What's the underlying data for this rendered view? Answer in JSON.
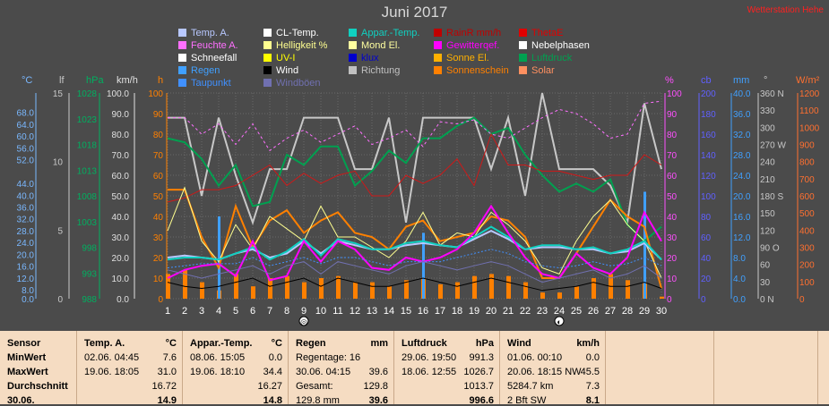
{
  "title": "Juni 2017",
  "watermark": "Wetterstation Hehe",
  "legend": [
    {
      "label": "Temp. A.",
      "color": "#b8c8ff"
    },
    {
      "label": "CL-Temp.",
      "color": "#ffffff"
    },
    {
      "label": "Appar.-Temp.",
      "color": "#10d0c0"
    },
    {
      "label": "RainR mm/h",
      "color": "#c00000"
    },
    {
      "label": "ThetaE",
      "color": "#e00000"
    },
    {
      "label": "Feuchte A.",
      "color": "#ff70ff"
    },
    {
      "label": "Helligkeit %",
      "color": "#ffff90"
    },
    {
      "label": "Mond El.",
      "color": "#ffffa0"
    },
    {
      "label": "Gewitterqef.",
      "color": "#ff00ff"
    },
    {
      "label": "Nebelphasen",
      "color": "#ffffff"
    },
    {
      "label": "Schneefall",
      "color": "#ffffff"
    },
    {
      "label": "UV-I",
      "color": "#ffff00"
    },
    {
      "label": "klux",
      "color": "#0000cc"
    },
    {
      "label": "Sonne El.",
      "color": "#ffb000"
    },
    {
      "label": "Luftdruck",
      "color": "#00a050"
    },
    {
      "label": "Regen",
      "color": "#40a0ff"
    },
    {
      "label": "Wind",
      "color": "#000000"
    },
    {
      "label": "Richtung",
      "color": "#c0c0c0"
    },
    {
      "label": "Sonnenschein",
      "color": "#ff8000"
    },
    {
      "label": "Solar",
      "color": "#ff9060"
    },
    {
      "label": "Taupunkt",
      "color": "#4090ff"
    },
    {
      "label": "Windböen",
      "color": "#7070b0"
    }
  ],
  "axis_headers": {
    "temp": "°C",
    "lf": "lf",
    "hpa": "hPa",
    "kmh": "km/h",
    "h": "h",
    "pct": "%",
    "cb": "cb",
    "mm": "mm",
    "deg": "°",
    "wm2": "W/m²"
  },
  "chart_data": {
    "type": "line",
    "title": "Juni 2017",
    "x": [
      1,
      2,
      3,
      4,
      5,
      6,
      7,
      8,
      9,
      10,
      11,
      12,
      13,
      14,
      15,
      16,
      17,
      18,
      19,
      20,
      21,
      22,
      23,
      24,
      25,
      26,
      27,
      28,
      29,
      30
    ],
    "axes": {
      "temp_c": {
        "ticks": [
          "68.0",
          "64.0",
          "60.0",
          "56.0",
          "52.0",
          "44.0",
          "40.0",
          "36.0",
          "32.0",
          "28.0",
          "24.0",
          "20.0",
          "16.0",
          "12.0",
          "8.0",
          "0.0"
        ]
      },
      "lf": {
        "ticks": [
          "15",
          "10",
          "5",
          "0"
        ]
      },
      "hpa": {
        "ticks": [
          "1028",
          "1023",
          "1018",
          "1013",
          "1008",
          "1003",
          "998",
          "993",
          "988"
        ]
      },
      "kmh": {
        "ticks": [
          "100.0",
          "90.0",
          "80.0",
          "70.0",
          "60.0",
          "50.0",
          "40.0",
          "30.0",
          "20.0",
          "10.0",
          "0.0"
        ]
      },
      "h": {
        "ticks": [
          "100",
          "90",
          "80",
          "70",
          "60",
          "50",
          "40",
          "30",
          "20",
          "10",
          "0"
        ]
      },
      "pct": {
        "ticks": [
          "100",
          "90",
          "80",
          "70",
          "60",
          "50",
          "40",
          "30",
          "20",
          "10",
          "0"
        ]
      },
      "cb": {
        "ticks": [
          "200",
          "180",
          "160",
          "140",
          "120",
          "100",
          "80",
          "60",
          "40",
          "20",
          "0"
        ]
      },
      "mm": {
        "ticks": [
          "40.0",
          "36.0",
          "32.0",
          "28.0",
          "24.0",
          "20.0",
          "16.0",
          "12.0",
          "8.0",
          "4.0",
          "0.0"
        ]
      },
      "deg": {
        "ticks": [
          "360 N",
          "330",
          "300",
          "270 W",
          "240",
          "210",
          "180 S",
          "150",
          "120",
          "90 O",
          "60",
          "30",
          "0 N"
        ]
      },
      "wm2": {
        "ticks": [
          "1200",
          "1100",
          "1000",
          "900",
          "800",
          "700",
          "600",
          "500",
          "400",
          "300",
          "200",
          "100",
          "0"
        ]
      }
    },
    "series": [
      {
        "name": "Richtung",
        "color": "#c8c8c8",
        "width": 2,
        "values": [
          88,
          88,
          50,
          88,
          60,
          37,
          63,
          63,
          88,
          88,
          88,
          63,
          63,
          88,
          37,
          88,
          88,
          88,
          88,
          63,
          88,
          50,
          100,
          63,
          63,
          63,
          55,
          37,
          95,
          63
        ]
      },
      {
        "name": "Luftdruck",
        "color": "#00a050",
        "width": 2,
        "values": [
          78,
          76,
          68,
          55,
          65,
          45,
          47,
          70,
          65,
          74,
          74,
          55,
          62,
          72,
          66,
          78,
          78,
          84,
          88,
          80,
          83,
          70,
          60,
          52,
          56,
          52,
          58,
          36,
          28,
          35
        ]
      },
      {
        "name": "ThetaE",
        "color": "#d01818",
        "width": 1,
        "values": [
          47,
          49,
          53,
          53,
          55,
          60,
          65,
          55,
          61,
          56,
          60,
          62,
          50,
          50,
          60,
          56,
          60,
          68,
          55,
          80,
          65,
          65,
          62,
          62,
          60,
          58,
          60,
          60,
          70,
          65
        ]
      },
      {
        "name": "Feuchte A.",
        "color": "#ff70ff",
        "width": 1,
        "dash": "3,3",
        "values": [
          88,
          88,
          80,
          85,
          75,
          85,
          72,
          78,
          82,
          76,
          80,
          84,
          75,
          78,
          82,
          74,
          86,
          85,
          87,
          80,
          78,
          83,
          88,
          92,
          90,
          85,
          78,
          80,
          95,
          96
        ]
      },
      {
        "name": "Sonnenschein",
        "color": "#ff8000",
        "width": 2,
        "values": [
          53,
          53,
          30,
          15,
          45,
          25,
          38,
          43,
          32,
          38,
          42,
          32,
          30,
          24,
          35,
          38,
          28,
          30,
          32,
          40,
          38,
          30,
          10,
          10,
          22,
          35,
          48,
          40,
          35,
          5
        ]
      },
      {
        "name": "Helligkeit %",
        "color": "#ffff90",
        "width": 1,
        "values": [
          33,
          54,
          28,
          18,
          36,
          24,
          40,
          34,
          28,
          45,
          30,
          30,
          25,
          20,
          28,
          42,
          26,
          32,
          30,
          42,
          36,
          28,
          15,
          12,
          28,
          40,
          48,
          36,
          28,
          10
        ]
      },
      {
        "name": "Temp. A.",
        "color": "#b8c8ff",
        "width": 2,
        "values": [
          20,
          21,
          20,
          19,
          22,
          24,
          20,
          22,
          28,
          22,
          28,
          26,
          24,
          24,
          26,
          27,
          26,
          25,
          29,
          33,
          29,
          24,
          25,
          25,
          24,
          24,
          22,
          23,
          27,
          19
        ]
      },
      {
        "name": "Appar.-Temp.",
        "color": "#10d0c0",
        "width": 2,
        "values": [
          19,
          20,
          20,
          19,
          22,
          25,
          19,
          23,
          29,
          21,
          29,
          27,
          24,
          24,
          27,
          28,
          26,
          25,
          30,
          35,
          30,
          24,
          26,
          26,
          24,
          25,
          22,
          24,
          28,
          19
        ]
      },
      {
        "name": "Gewitterqef.",
        "color": "#ff00ff",
        "width": 2,
        "values": [
          10,
          14,
          16,
          17,
          11,
          28,
          9,
          11,
          28,
          18,
          28,
          24,
          15,
          14,
          20,
          18,
          20,
          24,
          32,
          45,
          32,
          20,
          12,
          10,
          22,
          15,
          12,
          20,
          42,
          28
        ]
      },
      {
        "name": "Taupunkt",
        "color": "#4090ff",
        "width": 1,
        "dash": "2,2",
        "values": [
          15,
          16,
          17,
          17,
          17,
          20,
          16,
          18,
          20,
          17,
          20,
          20,
          18,
          16,
          18,
          18,
          18,
          20,
          22,
          24,
          22,
          18,
          16,
          15,
          16,
          18,
          16,
          17,
          20,
          16
        ]
      },
      {
        "name": "Windböen",
        "color": "#7070b0",
        "width": 1,
        "values": [
          14,
          12,
          10,
          12,
          14,
          16,
          12,
          16,
          18,
          12,
          18,
          16,
          14,
          12,
          16,
          18,
          16,
          14,
          16,
          18,
          16,
          12,
          8,
          10,
          12,
          14,
          10,
          12,
          16,
          10
        ]
      },
      {
        "name": "Wind",
        "color": "#000000",
        "width": 1,
        "values": [
          8,
          6,
          5,
          6,
          8,
          10,
          6,
          8,
          10,
          6,
          10,
          8,
          6,
          6,
          8,
          10,
          8,
          6,
          8,
          10,
          8,
          6,
          4,
          5,
          6,
          8,
          6,
          6,
          8,
          5
        ]
      }
    ],
    "bars": {
      "Regen": {
        "color": "#40a0ff",
        "values": [
          0,
          0,
          0,
          40,
          0,
          0,
          0,
          0,
          0,
          0,
          0,
          0,
          0,
          0,
          0,
          32,
          0,
          0,
          0,
          0,
          0,
          0,
          0,
          0,
          0,
          0,
          0,
          0,
          52,
          0
        ]
      },
      "Sonnenschein_h": {
        "color": "#ff8000",
        "values": [
          12,
          14,
          8,
          4,
          12,
          6,
          10,
          11,
          8,
          10,
          11,
          8,
          8,
          6,
          9,
          10,
          7,
          8,
          11,
          12,
          11,
          8,
          3,
          3,
          6,
          10,
          12,
          9,
          8,
          1
        ]
      }
    },
    "moon_markers": [
      {
        "day": 9,
        "symbol": "◎"
      },
      {
        "day": 24,
        "symbol": "◐"
      }
    ]
  },
  "summary_table": {
    "row_labels": [
      "Sensor",
      "MinWert",
      "MaxWert",
      "Durchschnitt",
      "30.06."
    ],
    "columns": [
      {
        "header": "Temp. A.",
        "unit": "°C",
        "rows": [
          [
            "",
            ""
          ],
          [
            "02.06.  04:45",
            "7.6"
          ],
          [
            "19.06.  18:05",
            "31.0"
          ],
          [
            "",
            "16.72"
          ],
          [
            "",
            "14.9"
          ]
        ]
      },
      {
        "header": "Appar.-Temp.",
        "unit": "°C",
        "rows": [
          [
            "",
            ""
          ],
          [
            "08.06.  15:05",
            "0.0"
          ],
          [
            "19.06.  18:10",
            "34.4"
          ],
          [
            "",
            "16.27"
          ],
          [
            "",
            "14.8"
          ]
        ]
      },
      {
        "header": "Regen",
        "unit": "mm",
        "rows": [
          [
            "",
            ""
          ],
          [
            "Regentage: 16",
            ""
          ],
          [
            "30.06.  04:15",
            "39.6"
          ],
          [
            "Gesamt:",
            "129.8"
          ],
          [
            "129.8 mm",
            "39.6"
          ]
        ]
      },
      {
        "header": "Luftdruck",
        "unit": "hPa",
        "rows": [
          [
            "",
            ""
          ],
          [
            "29.06.  19:50",
            "991.3"
          ],
          [
            "18.06.  12:55",
            "1026.7"
          ],
          [
            "",
            "1013.7"
          ],
          [
            "",
            "996.6"
          ]
        ]
      },
      {
        "header": "Wind",
        "unit": "km/h",
        "rows": [
          [
            "",
            ""
          ],
          [
            "01.06.  00:10",
            "0.0"
          ],
          [
            "20.06.  18:15 NW",
            "45.5"
          ],
          [
            "5284.7 km",
            "7.3"
          ],
          [
            "2 Bft SW",
            "8.1"
          ]
        ]
      }
    ]
  }
}
